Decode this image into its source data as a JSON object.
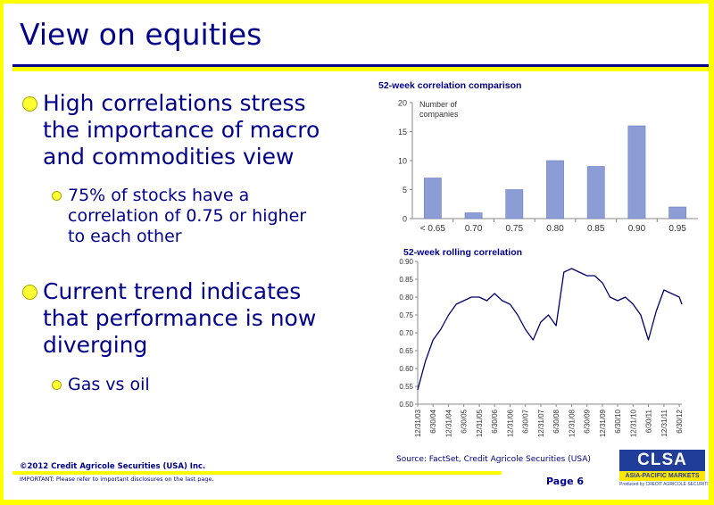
{
  "title": "View on equities",
  "bullets": [
    {
      "lines": [
        "High correlations stress",
        "the importance of macro",
        "and commodities view"
      ],
      "sub": [
        "75% of stocks have a",
        "correlation of 0.75 or higher",
        "to each other"
      ]
    },
    {
      "lines": [
        "Current trend indicates",
        "that performance is now",
        "diverging"
      ],
      "sub": [
        "Gas vs oil"
      ]
    }
  ],
  "chart1": {
    "title": "52-week correlation comparison",
    "ylabel_lines": [
      "Number of",
      "companies"
    ]
  },
  "chart2": {
    "title": "52-week rolling correlation"
  },
  "chart_data": [
    {
      "type": "bar",
      "title": "52-week correlation comparison",
      "ylabel": "Number of companies",
      "categories": [
        "< 0.65",
        "0.70",
        "0.75",
        "0.80",
        "0.85",
        "0.90",
        "0.95"
      ],
      "values": [
        7,
        1,
        5,
        10,
        9,
        16,
        2
      ],
      "ylim": [
        0,
        20
      ],
      "yticks": [
        0,
        5,
        10,
        15,
        20
      ],
      "bar_color": "#8c9dd6"
    },
    {
      "type": "line",
      "title": "52-week rolling correlation",
      "x_tick_labels": [
        "12/31/03",
        "6/30/04",
        "12/31/04",
        "6/30/05",
        "12/31/05",
        "6/30/06",
        "12/31/06",
        "6/30/07",
        "12/31/07",
        "6/30/08",
        "12/31/08",
        "6/30/09",
        "12/31/09",
        "6/30/10",
        "12/31/10",
        "6/30/11",
        "12/31/11",
        "6/30/12"
      ],
      "ylim": [
        0.5,
        0.9
      ],
      "yticks": [
        "0.50",
        "0.55",
        "0.60",
        "0.65",
        "0.70",
        "0.75",
        "0.80",
        "0.85",
        "0.90"
      ],
      "line_color": "#00006e",
      "series": [
        {
          "x": [
            "12/31/03",
            "3/31/04",
            "6/30/04",
            "9/30/04",
            "12/31/04",
            "3/31/05",
            "6/30/05",
            "9/30/05",
            "12/31/05",
            "3/31/06",
            "6/30/06",
            "9/30/06",
            "12/31/06",
            "3/31/07",
            "6/30/07",
            "9/30/07",
            "12/31/07",
            "3/31/08",
            "6/30/08",
            "9/30/08",
            "12/31/08",
            "3/31/09",
            "6/30/09",
            "9/30/09",
            "12/31/09",
            "3/31/10",
            "6/30/10",
            "9/30/10",
            "12/31/10",
            "3/31/11",
            "6/30/11",
            "9/30/11",
            "12/31/11",
            "3/31/12",
            "6/30/12",
            "7/31/12"
          ],
          "values": [
            0.54,
            0.62,
            0.68,
            0.71,
            0.75,
            0.78,
            0.79,
            0.8,
            0.8,
            0.79,
            0.81,
            0.79,
            0.78,
            0.75,
            0.71,
            0.68,
            0.73,
            0.75,
            0.72,
            0.87,
            0.88,
            0.87,
            0.86,
            0.86,
            0.84,
            0.8,
            0.79,
            0.8,
            0.78,
            0.75,
            0.68,
            0.76,
            0.82,
            0.81,
            0.8,
            0.78
          ]
        }
      ]
    }
  ],
  "source": "Source: FactSet, Credit Agricole Securities (USA)",
  "copyright": "©2012 Credit Agricole Securities (USA) Inc.",
  "disclaimer": "IMPORTANT: Please refer to important disclosures on the last page.",
  "page_label": "Page 6",
  "logo": {
    "main": "CLSA",
    "sub": "ASIA-PACIFIC MARKETS",
    "produced": "Produced by CREDIT AGRICOLE SECURITIES"
  },
  "colors": {
    "frame": "#ffff00",
    "text": "#00008b",
    "bullet": "#ffff33"
  }
}
